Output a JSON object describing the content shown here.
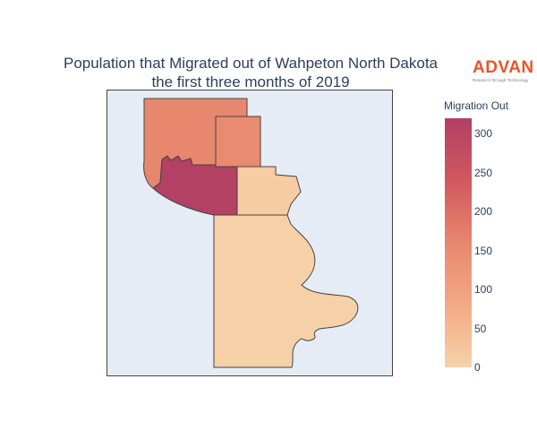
{
  "title": {
    "line1": "Population that Migrated out of Wahpeton North Dakota",
    "line2": "the first three months of 2019"
  },
  "logo": {
    "word": "ADVAN",
    "tagline": "Research through Technology"
  },
  "colorbar": {
    "title": "Migration Out",
    "min": 0,
    "max": 320,
    "ticks": [
      "300",
      "250",
      "200",
      "150",
      "100",
      "50",
      "0"
    ],
    "colors": [
      "#f6d2a9",
      "#f3aa84",
      "#e7876e",
      "#d1585f",
      "#b13f64"
    ]
  },
  "regions": [
    {
      "name": "northwest",
      "value": 160
    },
    {
      "name": "north-central",
      "value": 150
    },
    {
      "name": "west-central",
      "value": 315
    },
    {
      "name": "east-central",
      "value": 12
    },
    {
      "name": "south",
      "value": 5
    }
  ]
}
